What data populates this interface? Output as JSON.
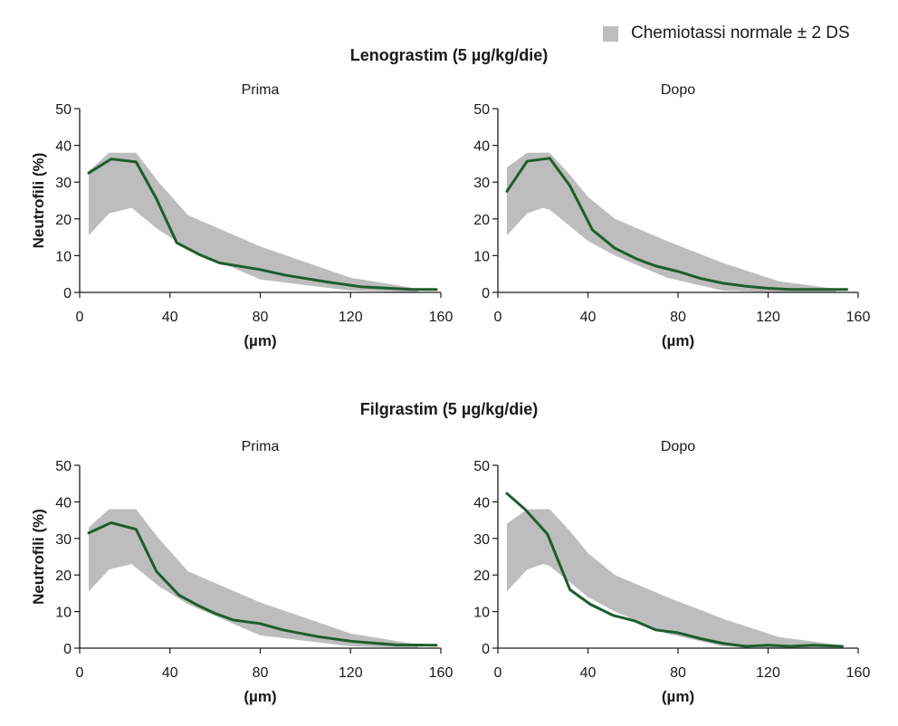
{
  "legend": {
    "label": "Chemiotassi normale ± 2 DS",
    "swatch_color": "#bdbdbd"
  },
  "groups": [
    {
      "title": "Lenograstim (5 µg/kg/die)"
    },
    {
      "title": "Filgrastim (5 µg/kg/die)"
    }
  ],
  "chart_data": [
    {
      "type": "line",
      "group": "Lenograstim (5 µg/kg/die)",
      "title": "Prima",
      "xlabel": "(µm)",
      "ylabel": "Neutrofili (%)",
      "xlim": [
        0,
        160
      ],
      "ylim": [
        0,
        50
      ],
      "xticks": [
        0,
        40,
        80,
        120,
        160
      ],
      "yticks": [
        0,
        10,
        20,
        30,
        40,
        50
      ],
      "band": {
        "x": [
          4,
          13,
          23,
          25,
          35,
          48,
          80,
          120,
          150
        ],
        "upper": [
          33,
          38,
          38,
          38,
          30,
          21,
          12.5,
          4,
          1
        ],
        "lower": [
          15.5,
          21.5,
          23,
          22,
          17,
          12,
          3.5,
          0.5,
          0
        ]
      },
      "series": [
        {
          "name": "Neutrofili",
          "color": "#1e5c2e",
          "x": [
            4,
            14,
            25,
            34,
            43,
            53,
            62,
            80,
            91,
            110,
            125,
            147,
            158
          ],
          "y": [
            32.5,
            36.3,
            35.5,
            25.5,
            13.5,
            10.3,
            8,
            6.2,
            4.7,
            2.8,
            1.5,
            0.8,
            0.8
          ]
        }
      ]
    },
    {
      "type": "line",
      "group": "Lenograstim (5 µg/kg/die)",
      "title": "Dopo",
      "xlabel": "(µm)",
      "ylabel": "",
      "xlim": [
        0,
        160
      ],
      "ylim": [
        0,
        50
      ],
      "xticks": [
        0,
        40,
        80,
        120,
        160
      ],
      "yticks": [
        0,
        10,
        20,
        30,
        40,
        50
      ],
      "band": {
        "x": [
          4,
          13,
          20,
          23,
          32,
          40,
          52,
          75,
          100,
          125,
          150
        ],
        "upper": [
          34,
          38,
          38,
          38,
          32,
          26,
          20,
          14,
          8,
          3,
          1
        ],
        "lower": [
          15.5,
          21.5,
          23,
          22.5,
          18,
          14,
          10,
          4,
          0.5,
          0,
          0
        ]
      },
      "series": [
        {
          "name": "Neutrofili",
          "color": "#1e5c2e",
          "x": [
            4,
            13,
            23,
            32,
            42,
            52,
            62,
            70,
            80,
            90,
            100,
            110,
            120,
            130,
            140,
            155
          ],
          "y": [
            27.5,
            35.7,
            36.5,
            29,
            17,
            12,
            9,
            7.2,
            5.7,
            3.8,
            2.5,
            1.7,
            1.1,
            0.8,
            0.8,
            0.8
          ]
        }
      ]
    },
    {
      "type": "line",
      "group": "Filgrastim (5 µg/kg/die)",
      "title": "Prima",
      "xlabel": "(µm)",
      "ylabel": "Neutrofili (%)",
      "xlim": [
        0,
        160
      ],
      "ylim": [
        0,
        50
      ],
      "xticks": [
        0,
        40,
        80,
        120,
        160
      ],
      "yticks": [
        0,
        10,
        20,
        30,
        40,
        50
      ],
      "band": {
        "x": [
          4,
          13,
          23,
          25,
          35,
          48,
          80,
          120,
          150
        ],
        "upper": [
          33,
          38,
          38,
          38,
          30,
          21,
          12.5,
          4,
          1
        ],
        "lower": [
          15.5,
          21.5,
          23,
          22,
          17,
          12,
          3.5,
          0.5,
          0
        ]
      },
      "series": [
        {
          "name": "Neutrofili",
          "color": "#1e5c2e",
          "x": [
            4,
            14,
            25,
            34,
            44,
            53,
            60,
            68,
            80,
            90,
            105,
            120,
            140,
            158
          ],
          "y": [
            31.5,
            34.3,
            32.5,
            21,
            14.5,
            11.5,
            9.5,
            7.7,
            6.7,
            5,
            3.2,
            1.9,
            0.9,
            0.8
          ]
        }
      ]
    },
    {
      "type": "line",
      "group": "Filgrastim (5 µg/kg/die)",
      "title": "Dopo",
      "xlabel": "(µm)",
      "ylabel": "",
      "xlim": [
        0,
        160
      ],
      "ylim": [
        0,
        50
      ],
      "xticks": [
        0,
        40,
        80,
        120,
        160
      ],
      "yticks": [
        0,
        10,
        20,
        30,
        40,
        50
      ],
      "band": {
        "x": [
          4,
          13,
          20,
          23,
          32,
          40,
          52,
          75,
          100,
          125,
          150
        ],
        "upper": [
          34,
          38,
          38,
          38,
          32,
          26,
          20,
          14,
          8,
          3,
          1
        ],
        "lower": [
          15.5,
          21.5,
          23,
          22.5,
          18,
          14,
          10,
          4,
          0.5,
          0,
          0
        ]
      },
      "series": [
        {
          "name": "Neutrofili",
          "color": "#1e5c2e",
          "x": [
            4,
            12,
            22,
            32,
            41,
            51,
            61,
            70,
            80,
            90,
            100,
            110,
            120,
            130,
            140,
            153
          ],
          "y": [
            42.3,
            38,
            31.2,
            16,
            12,
            9,
            7.4,
            5,
            4.2,
            2.6,
            1.3,
            0.5,
            0.8,
            0.5,
            0.8,
            0.5
          ]
        }
      ]
    }
  ]
}
